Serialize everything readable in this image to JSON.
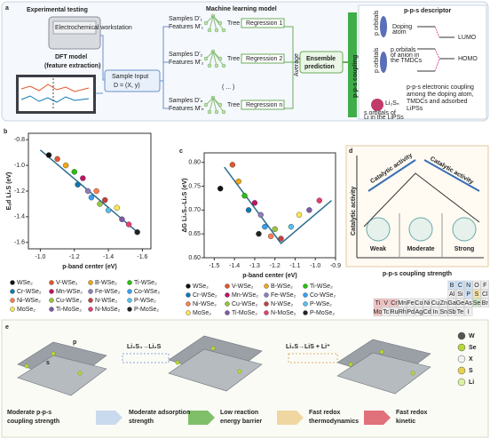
{
  "panel_a": {
    "label": "a",
    "experimental": "Experimental testing",
    "workstation": "Electrochemical workstation",
    "dft": "DFT model",
    "dft2": "(feature extraction)",
    "ml_title": "Machine learning model",
    "sample_input": "Sample Input",
    "sample_eq": "D = (X, y)",
    "samples": [
      {
        "s": "Samples D'₁",
        "f": "Features M'₁",
        "tree": "Tree 1",
        "reg": "Regression 1"
      },
      {
        "s": "Samples D'₂",
        "f": "Features M'₂",
        "tree": "Tree 2",
        "reg": "Regression 2"
      },
      {
        "s": "Samples D'ₙ",
        "f": "Features M'ₙ",
        "tree": "Tree n",
        "reg": "Regression n"
      }
    ],
    "ellipsis": "( ... )",
    "average": "Average",
    "ensemble": [
      "Ensemble",
      "prediction"
    ],
    "coupling": "p-p-s coupling",
    "descriptor": "p-p-s descriptor",
    "lumo": "LUMO",
    "homo": "HOMO",
    "doping": [
      "Doping",
      "atom"
    ],
    "tmdc": [
      "p orbitals",
      "of anion in",
      "the TMDCs"
    ],
    "li2sn": "Li₂Sₙ",
    "lips_orb": [
      "s orbitals of",
      "Li in the LiPSs"
    ],
    "desc_text": [
      "p-p-s electronic coupling",
      "among the doping atom,",
      "TMDCs and adsorbed",
      "LiPSs"
    ],
    "orb1": "p orbitals",
    "orb2": "p orbitals"
  },
  "chart_data": [
    {
      "type": "scatter",
      "label": "b",
      "ylabel": "Eₐd Li₂S (eV)",
      "xlabel": "p-band center (eV)",
      "xlim": [
        -0.93,
        -1.65
      ],
      "ylim": [
        -1.65,
        -0.75
      ],
      "xticks": [
        {
          "value": -1,
          "label": "-1.0"
        },
        -1.2,
        -1.4,
        -1.6
      ],
      "yticks": [
        -0.8,
        {
          "value": -1,
          "label": "-1.0"
        },
        -1.2,
        -1.4,
        -1.6
      ],
      "lines": [
        {
          "x": [
            -1.0,
            -1.58
          ],
          "values": [
            -0.88,
            -1.53
          ],
          "color": "#2b6c8f"
        }
      ],
      "series": [
        {
          "name": "WSe₂",
          "color": "#111111",
          "x": [
            -1.05
          ],
          "values": [
            -0.92
          ]
        },
        {
          "name": "V-WSe₂",
          "color": "#e4572e",
          "x": [
            -1.1
          ],
          "values": [
            -0.95
          ]
        },
        {
          "name": "B-WSe₂",
          "color": "#f3a712",
          "x": [
            -1.15
          ],
          "values": [
            -1.0
          ]
        },
        {
          "name": "Ti-WSe₂",
          "color": "#29bf12",
          "x": [
            -1.2
          ],
          "values": [
            -1.05
          ]
        },
        {
          "name": "Cr-WSe₂",
          "color": "#0e79b2",
          "x": [
            -1.22
          ],
          "values": [
            -1.15
          ]
        },
        {
          "name": "Mn-WSe₂",
          "color": "#bf1363",
          "x": [
            -1.25
          ],
          "values": [
            -1.1
          ]
        },
        {
          "name": "Fe-WSe₂",
          "color": "#8e7dbe",
          "x": [
            -1.28
          ],
          "values": [
            -1.2
          ]
        },
        {
          "name": "Co-WSe₂",
          "color": "#39a0ed",
          "x": [
            -1.3
          ],
          "values": [
            -1.25
          ]
        },
        {
          "name": "Ni-WSe₂",
          "color": "#ff7f50",
          "x": [
            -1.33
          ],
          "values": [
            -1.2
          ]
        },
        {
          "name": "Cu-WSe₂",
          "color": "#9bc53d",
          "x": [
            -1.35
          ],
          "values": [
            -1.3
          ]
        },
        {
          "name": "N-WSe₂",
          "color": "#c3423f",
          "x": [
            -1.38
          ],
          "values": [
            -1.27
          ]
        },
        {
          "name": "P-WSe₂",
          "color": "#5bc0eb",
          "x": [
            -1.4
          ],
          "values": [
            -1.35
          ]
        },
        {
          "name": "MoSe₂",
          "color": "#fde74c",
          "x": [
            -1.45
          ],
          "values": [
            -1.33
          ]
        },
        {
          "name": "Ti-MoSe₂",
          "color": "#7d5ba6",
          "x": [
            -1.48
          ],
          "values": [
            -1.42
          ]
        },
        {
          "name": "N-MoSe₂",
          "color": "#e83f6f",
          "x": [
            -1.52
          ],
          "values": [
            -1.46
          ]
        },
        {
          "name": "P-MoSe₂",
          "color": "#222222",
          "x": [
            -1.57
          ],
          "values": [
            -1.52
          ]
        }
      ]
    },
    {
      "type": "scatter",
      "label": "c",
      "ylabel": "ΔG Li₂S₂-Li₂S (eV)",
      "xlabel": "p-band center (eV)",
      "xlim": [
        -1.55,
        -0.9
      ],
      "ylim": [
        0.6,
        0.82
      ],
      "xticks": [
        -1.5,
        -1.4,
        -1.3,
        -1.2,
        -1.1,
        {
          "value": -1,
          "label": "-1.0"
        },
        -0.9
      ],
      "yticks": [
        {
          "value": 0.6,
          "label": "0.60"
        },
        0.65,
        {
          "value": 0.7,
          "label": "0.70"
        },
        0.75,
        {
          "value": 0.8,
          "label": "0.80"
        }
      ],
      "lines": [
        {
          "x": [
            -1.45,
            -1.17,
            -0.92
          ],
          "values": [
            0.79,
            0.63,
            0.72
          ],
          "color": "#2b6c8f"
        }
      ],
      "series": [
        {
          "name": "WSe₂",
          "color": "#111111",
          "x": [
            -1.47
          ],
          "values": [
            0.745
          ]
        },
        {
          "name": "V-WSe₂",
          "color": "#e4572e",
          "x": [
            -1.41
          ],
          "values": [
            0.795
          ]
        },
        {
          "name": "B-WSe₂",
          "color": "#f3a712",
          "x": [
            -1.38
          ],
          "values": [
            0.76
          ]
        },
        {
          "name": "Ti-WSe₂",
          "color": "#29bf12",
          "x": [
            -1.35
          ],
          "values": [
            0.73
          ]
        },
        {
          "name": "Cr-WSe₂",
          "color": "#0e79b2",
          "x": [
            -1.33
          ],
          "values": [
            0.7
          ]
        },
        {
          "name": "Mn-WSe₂",
          "color": "#bf1363",
          "x": [
            -1.3
          ],
          "values": [
            0.715
          ]
        },
        {
          "name": "Fe-WSe₂",
          "color": "#8e7dbe",
          "x": [
            -1.27
          ],
          "values": [
            0.69
          ]
        },
        {
          "name": "Co-WSe₂",
          "color": "#39a0ed",
          "x": [
            -1.25
          ],
          "values": [
            0.665
          ]
        },
        {
          "name": "Ni-WSe₂",
          "color": "#ff7f50",
          "x": [
            -1.22
          ],
          "values": [
            0.645
          ]
        },
        {
          "name": "Cu-WSe₂",
          "color": "#9bc53d",
          "x": [
            -1.2
          ],
          "values": [
            0.66
          ]
        },
        {
          "name": "N-WSe₂",
          "color": "#c3423f",
          "x": [
            -1.17
          ],
          "values": [
            0.64
          ]
        },
        {
          "name": "P-WSe₂",
          "color": "#5bc0eb",
          "x": [
            -1.12
          ],
          "values": [
            0.665
          ]
        },
        {
          "name": "MoSe₂",
          "color": "#fde74c",
          "x": [
            -1.08
          ],
          "values": [
            0.69
          ]
        },
        {
          "name": "Ti-MoSe₂",
          "color": "#7d5ba6",
          "x": [
            -1.03
          ],
          "values": [
            0.7
          ]
        },
        {
          "name": "N-MoSe₂",
          "color": "#e83f6f",
          "x": [
            -0.98
          ],
          "values": [
            0.72
          ]
        },
        {
          "name": "P-MoSe₂",
          "color": "#222222",
          "x": [
            -1.28
          ],
          "values": [
            0.65
          ]
        }
      ]
    }
  ],
  "panel_d": {
    "label": "d",
    "ylabel": "Catalytic activity",
    "arrow1": "Catalytic activity",
    "arrow2": "Catalytic activity",
    "weak": "Weak",
    "moderate": "Moderate",
    "strong": "Strong",
    "xlabel": "p-p-s coupling strength",
    "periodic": [
      [
        "B",
        "C",
        "N",
        "O",
        "F"
      ],
      [
        "Al",
        "Si",
        "P",
        "S",
        "Cl"
      ],
      [
        "Ti",
        "V",
        "Cr",
        "Mn",
        "Fe",
        "Co",
        "Ni",
        "Cu",
        "Zn",
        "Ga",
        "Ge",
        "As",
        "Se",
        "Br"
      ],
      [
        "Mo",
        "Tc",
        "Ru",
        "Rh",
        "Pd",
        "Ag",
        "Cd",
        "In",
        "Sn",
        "Sb",
        "Te",
        "I"
      ]
    ]
  },
  "panel_e": {
    "label": "e",
    "legend": [
      "W",
      "Se",
      "X",
      "S",
      "Li"
    ],
    "p": "p",
    "s": "s",
    "step1": "Li₂S₄→Li₂S",
    "step2": "Li₂S→LiS + Li⁺",
    "flow": [
      [
        "Moderate p-p-s",
        "coupling strength"
      ],
      [
        "Moderate adsorption",
        "strength"
      ],
      [
        "Low reaction",
        "energy barrier"
      ],
      [
        "Fast redox",
        "thermodynamics"
      ],
      [
        "Fast redox",
        "kinetic"
      ]
    ]
  }
}
